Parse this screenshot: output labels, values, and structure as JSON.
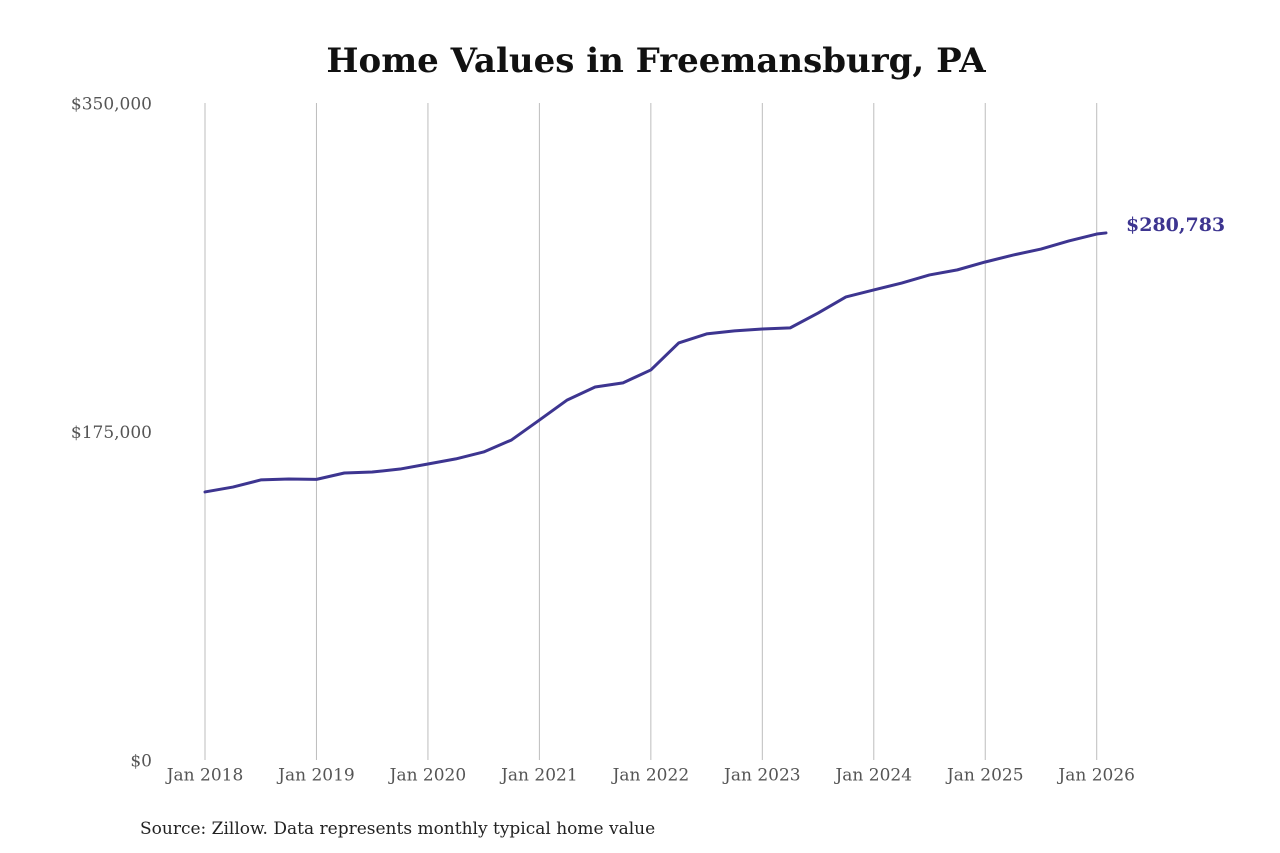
{
  "chart_data": {
    "type": "line",
    "title": "Home Values in Freemansburg, PA",
    "source": "Source: Zillow. Data represents monthly typical home value",
    "x": [
      "2018-01",
      "2018-04",
      "2018-07",
      "2018-10",
      "2019-01",
      "2019-04",
      "2019-07",
      "2019-10",
      "2020-01",
      "2020-04",
      "2020-07",
      "2020-10",
      "2021-01",
      "2021-04",
      "2021-07",
      "2021-10",
      "2022-01",
      "2022-04",
      "2022-07",
      "2022-10",
      "2023-01",
      "2023-04",
      "2023-07",
      "2023-10",
      "2024-01",
      "2024-04",
      "2024-07",
      "2024-10",
      "2025-01",
      "2025-04",
      "2025-07",
      "2025-10",
      "2026-01",
      "2026-02"
    ],
    "series": [
      {
        "name": "Home value",
        "color": "#3d3590",
        "values": [
          142800,
          145400,
          149200,
          149700,
          149500,
          152900,
          153400,
          155000,
          157700,
          160400,
          164100,
          170500,
          181100,
          191800,
          198700,
          200900,
          207800,
          222200,
          227000,
          228600,
          229600,
          230200,
          238100,
          246700,
          250400,
          254100,
          258400,
          261100,
          265300,
          269000,
          272200,
          276500,
          280200,
          280783
        ],
        "value_labels": [
          null,
          null,
          null,
          null,
          null,
          null,
          null,
          null,
          null,
          null,
          null,
          null,
          null,
          null,
          null,
          null,
          null,
          null,
          null,
          null,
          null,
          null,
          null,
          null,
          null,
          null,
          null,
          null,
          null,
          null,
          null,
          null,
          null,
          "$280,783"
        ]
      }
    ],
    "xlim": [
      "2018-01",
      "2026-02"
    ],
    "xticks": [
      {
        "value": "2018-01",
        "label": "Jan 2018"
      },
      {
        "value": "2019-01",
        "label": "Jan 2019"
      },
      {
        "value": "2020-01",
        "label": "Jan 2020"
      },
      {
        "value": "2021-01",
        "label": "Jan 2021"
      },
      {
        "value": "2022-01",
        "label": "Jan 2022"
      },
      {
        "value": "2023-01",
        "label": "Jan 2023"
      },
      {
        "value": "2024-01",
        "label": "Jan 2024"
      },
      {
        "value": "2025-01",
        "label": "Jan 2025"
      },
      {
        "value": "2026-01",
        "label": "Jan 2026"
      }
    ],
    "ylim": [
      0,
      350000
    ],
    "yticks": [
      {
        "value": 0,
        "label": "$0"
      },
      {
        "value": 175000,
        "label": "$175,000"
      },
      {
        "value": 350000,
        "label": "$350,000"
      }
    ],
    "grid": "x"
  }
}
